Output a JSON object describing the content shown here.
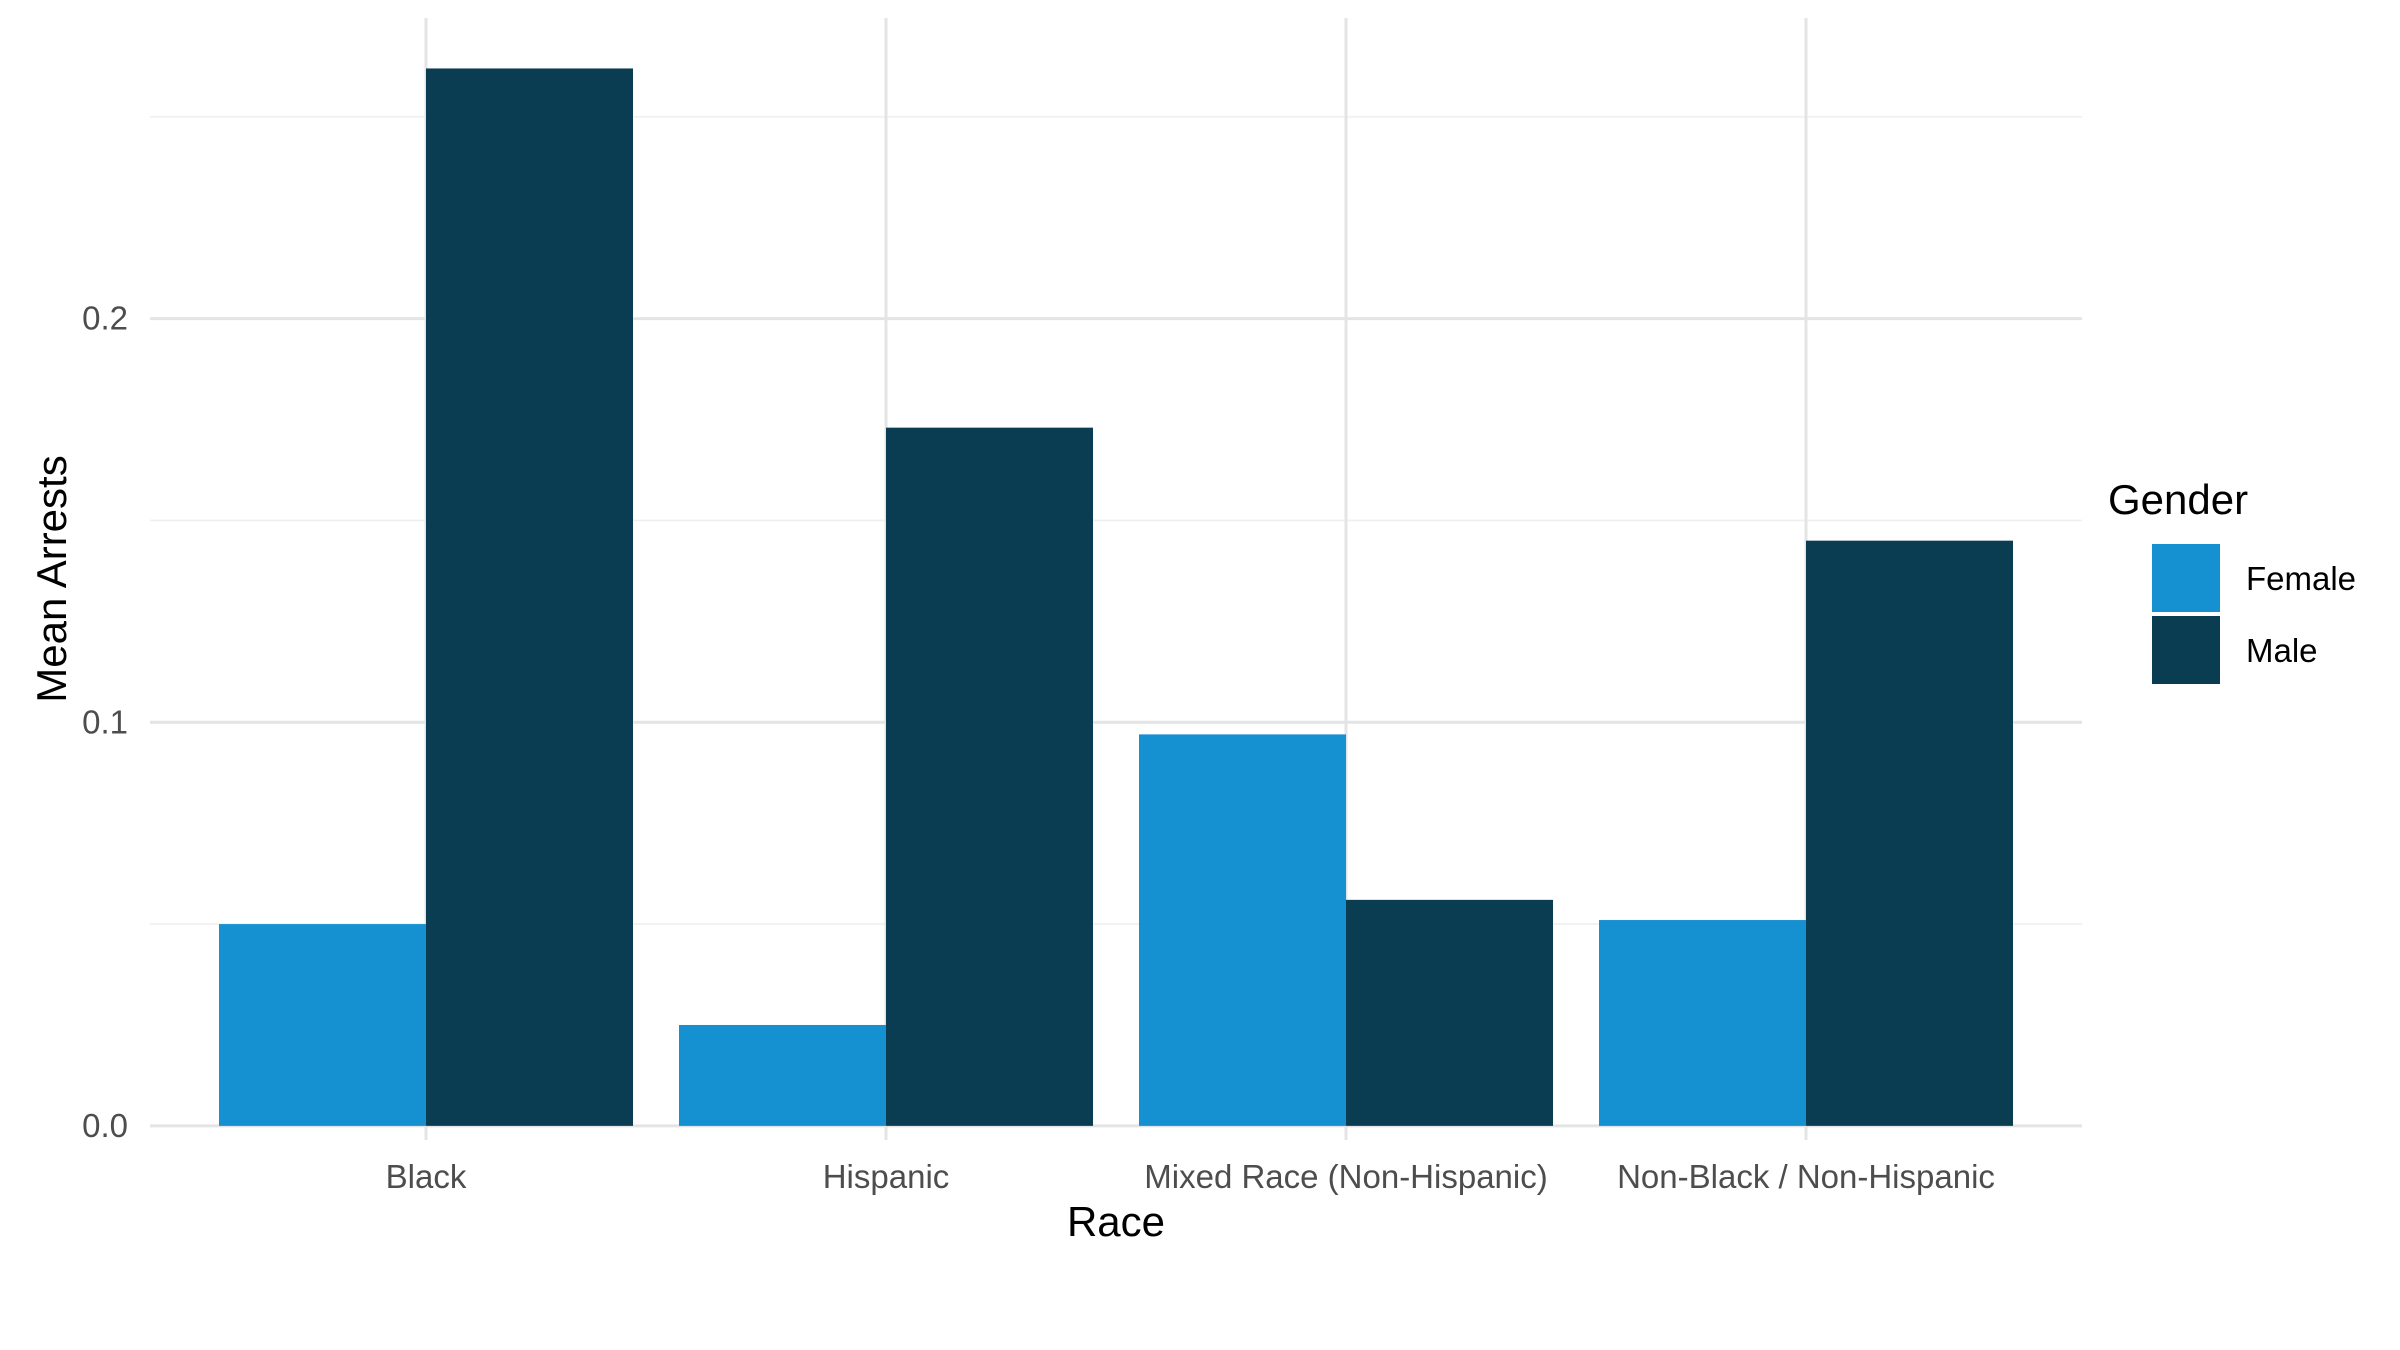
{
  "chart_data": {
    "type": "bar",
    "title": "",
    "xlabel": "Race",
    "ylabel": "Mean Arrests",
    "categories": [
      "Black",
      "Hispanic",
      "Mixed Race (Non-Hispanic)",
      "Non-Black / Non-Hispanic"
    ],
    "series": [
      {
        "name": "Female",
        "color": "#1590d0",
        "values": [
          0.05,
          0.025,
          0.097,
          0.051
        ]
      },
      {
        "name": "Male",
        "color": "#0a3c52",
        "values": [
          0.262,
          0.173,
          0.056,
          0.145
        ]
      }
    ],
    "ylim": [
      -0.0035,
      0.2745
    ],
    "yticks": [
      0.0,
      0.1,
      0.2
    ],
    "ytick_labels": [
      "0.0",
      "0.1",
      "0.2"
    ],
    "grid": true,
    "legend": {
      "title": "Gender",
      "placement": "right"
    }
  }
}
